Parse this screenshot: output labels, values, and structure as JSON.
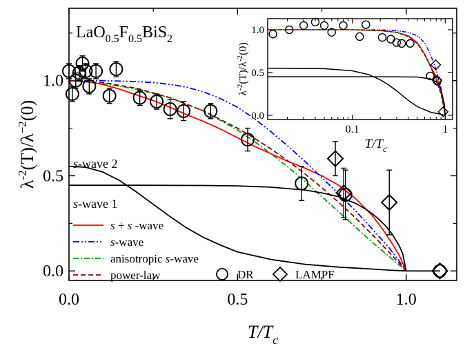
{
  "chart_data": {
    "type": "line",
    "main": {
      "title": {
        "base1": "LaO",
        "sub1": "0.5",
        "base2": "F",
        "sub2": "0.5",
        "base3": "BiS",
        "sub3": "2"
      },
      "xlabel": {
        "main": "T/T",
        "sub": "c"
      },
      "ylabel": {
        "p1": "λ",
        "sup1": "-2",
        "p2": "(T)/λ",
        "sup2": "−2",
        "p3": "(0)"
      },
      "xlim": [
        0,
        1.15
      ],
      "ylim": [
        -0.05,
        1.38
      ],
      "xticks": [
        {
          "value": 0.0,
          "label": "0.0"
        },
        {
          "value": 0.5,
          "label": "0.5"
        },
        {
          "value": 1.0,
          "label": "1.0"
        }
      ],
      "yticks": [
        {
          "value": 0.0,
          "label": "0.0"
        },
        {
          "value": 0.5,
          "label": "0.5"
        },
        {
          "value": 1.0,
          "label": "1.0"
        }
      ],
      "series": [
        {
          "key": "s_plus_s",
          "name": "s + s -wave",
          "color": "#ff0000",
          "dash": "",
          "x": [
            0.0,
            0.05,
            0.1,
            0.15,
            0.2,
            0.25,
            0.3,
            0.35,
            0.4,
            0.45,
            0.5,
            0.55,
            0.6,
            0.65,
            0.7,
            0.75,
            0.8,
            0.85,
            0.9,
            0.93,
            0.96,
            0.98,
            1.0
          ],
          "y": [
            1.0,
            0.995,
            0.98,
            0.955,
            0.925,
            0.895,
            0.86,
            0.82,
            0.785,
            0.745,
            0.7,
            0.655,
            0.615,
            0.575,
            0.54,
            0.5,
            0.45,
            0.38,
            0.29,
            0.22,
            0.14,
            0.08,
            0.0
          ]
        },
        {
          "key": "s_wave",
          "name": "s-wave",
          "color": "#0000ff",
          "dash": "9,3,2,3,2,3",
          "x": [
            0.0,
            0.1,
            0.2,
            0.25,
            0.3,
            0.35,
            0.4,
            0.45,
            0.5,
            0.55,
            0.6,
            0.65,
            0.7,
            0.75,
            0.8,
            0.85,
            0.9,
            0.95,
            0.98,
            1.0
          ],
          "y": [
            1.0,
            1.0,
            0.995,
            0.99,
            0.98,
            0.965,
            0.94,
            0.905,
            0.86,
            0.8,
            0.73,
            0.655,
            0.575,
            0.49,
            0.405,
            0.315,
            0.22,
            0.12,
            0.05,
            0.0
          ]
        },
        {
          "key": "anisotropic",
          "name": "anisotropic s-wave",
          "color": "#00a000",
          "dash": "8,3,2,3",
          "x": [
            0.0,
            0.1,
            0.2,
            0.3,
            0.4,
            0.5,
            0.55,
            0.6,
            0.65,
            0.7,
            0.75,
            0.8,
            0.85,
            0.9,
            0.95,
            0.98,
            1.0
          ],
          "y": [
            1.0,
            0.985,
            0.955,
            0.91,
            0.84,
            0.74,
            0.68,
            0.615,
            0.545,
            0.47,
            0.39,
            0.31,
            0.23,
            0.15,
            0.075,
            0.03,
            0.0
          ]
        },
        {
          "key": "power_law",
          "name": "power-law",
          "color": "#8b0000",
          "dash": "7,4",
          "x": [
            0.0,
            0.1,
            0.2,
            0.3,
            0.4,
            0.5,
            0.55,
            0.6,
            0.65,
            0.7,
            0.75,
            0.8,
            0.85,
            0.9,
            0.95,
            0.98,
            1.0
          ],
          "y": [
            1.0,
            0.99,
            0.96,
            0.91,
            0.84,
            0.75,
            0.697,
            0.64,
            0.577,
            0.51,
            0.437,
            0.36,
            0.278,
            0.19,
            0.0975,
            0.04,
            0.0
          ]
        },
        {
          "key": "s_wave_1",
          "name": "s-wave 1",
          "color": "#000000",
          "dash": "",
          "x": [
            0.0,
            0.2,
            0.4,
            0.5,
            0.6,
            0.7,
            0.75,
            0.8,
            0.85,
            0.88,
            0.9,
            0.92,
            0.94,
            0.96,
            0.98,
            0.99,
            1.0
          ],
          "y": [
            0.45,
            0.45,
            0.449,
            0.447,
            0.44,
            0.425,
            0.41,
            0.39,
            0.355,
            0.325,
            0.3,
            0.27,
            0.235,
            0.19,
            0.13,
            0.09,
            0.0
          ]
        },
        {
          "key": "s_wave_2",
          "name": "s-wave 2",
          "color": "#000000",
          "dash": "",
          "x": [
            0.0,
            0.05,
            0.1,
            0.15,
            0.2,
            0.25,
            0.3,
            0.35,
            0.4,
            0.45,
            0.5,
            0.6,
            0.7,
            0.8,
            0.9,
            0.95,
            1.0
          ],
          "y": [
            0.55,
            0.545,
            0.52,
            0.475,
            0.415,
            0.35,
            0.285,
            0.225,
            0.175,
            0.135,
            0.1,
            0.06,
            0.035,
            0.02,
            0.01,
            0.004,
            0.0
          ]
        }
      ],
      "dr_points": [
        {
          "x": 0.0,
          "y": 1.05,
          "err": 0.04
        },
        {
          "x": 0.01,
          "y": 0.93,
          "err": 0.04
        },
        {
          "x": 0.02,
          "y": 1.0,
          "err": 0.04
        },
        {
          "x": 0.03,
          "y": 1.04,
          "err": 0.04
        },
        {
          "x": 0.04,
          "y": 1.09,
          "err": 0.04
        },
        {
          "x": 0.05,
          "y": 1.05,
          "err": 0.04
        },
        {
          "x": 0.06,
          "y": 0.97,
          "err": 0.04
        },
        {
          "x": 0.08,
          "y": 1.05,
          "err": 0.04
        },
        {
          "x": 0.12,
          "y": 0.92,
          "err": 0.04
        },
        {
          "x": 0.14,
          "y": 1.06,
          "err": 0.04
        },
        {
          "x": 0.21,
          "y": 0.91,
          "err": 0.04
        },
        {
          "x": 0.26,
          "y": 0.89,
          "err": 0.04
        },
        {
          "x": 0.3,
          "y": 0.85,
          "err": 0.05
        },
        {
          "x": 0.34,
          "y": 0.84,
          "err": 0.05
        },
        {
          "x": 0.42,
          "y": 0.84,
          "err": 0.04
        },
        {
          "x": 0.53,
          "y": 0.69,
          "err": 0.06
        },
        {
          "x": 0.69,
          "y": 0.46,
          "err": 0.09
        },
        {
          "x": 0.82,
          "y": 0.4,
          "err": 0.13
        },
        {
          "x": 1.1,
          "y": 0.0,
          "err": 0.0
        }
      ],
      "lampf_points": [
        {
          "x": 0.79,
          "y": 0.59,
          "err": 0.09
        },
        {
          "x": 0.815,
          "y": 0.41,
          "err": 0.13
        },
        {
          "x": 0.95,
          "y": 0.36,
          "err": 0.17
        },
        {
          "x": 1.1,
          "y": 0.0,
          "err": 0.0
        }
      ],
      "labels": {
        "s_wave_2": {
          "italic": "s",
          "rest": "-wave 2"
        },
        "s_wave_1": {
          "italic": "s",
          "rest": "-wave 1"
        }
      },
      "legend": {
        "placement": "bottom-left",
        "lines": [
          {
            "series": "s_plus_s",
            "parts": [
              {
                "t": "s",
                "i": true
              },
              {
                "t": " + ",
                "i": false
              },
              {
                "t": "s",
                "i": true
              },
              {
                "t": " -wave",
                "i": false
              }
            ]
          },
          {
            "series": "s_wave",
            "parts": [
              {
                "t": "s",
                "i": true
              },
              {
                "t": "-wave",
                "i": false
              }
            ]
          },
          {
            "series": "anisotropic",
            "parts": [
              {
                "t": "anisotropic ",
                "i": false
              },
              {
                "t": "s",
                "i": true
              },
              {
                "t": "-wave",
                "i": false
              }
            ]
          },
          {
            "series": "power_law",
            "parts": [
              {
                "t": "power-law",
                "i": false
              }
            ]
          }
        ],
        "markers": [
          {
            "shape": "circle",
            "label": "DR"
          },
          {
            "shape": "diamond",
            "label": "LAMPF"
          }
        ]
      }
    },
    "inset": {
      "xscale": "log",
      "xlim": [
        0.0123,
        1.2
      ],
      "ylim": [
        -0.05,
        1.13
      ],
      "xlabel": {
        "main": "T/T",
        "sub": "c"
      },
      "ylabel": {
        "p1": "λ",
        "sup1": "-2",
        "p2": "(T)/λ",
        "sup2": "-2",
        "p3": "(0)"
      },
      "xticks": [
        {
          "value": 0.1,
          "label": "0.1"
        },
        {
          "value": 1.0,
          "label": "1"
        }
      ],
      "yticks": [
        {
          "value": 0.0,
          "label": "0.0"
        },
        {
          "value": 0.5,
          "label": "0.5"
        },
        {
          "value": 1.0,
          "label": "1.0"
        }
      ],
      "series": [
        {
          "key": "s_plus_s",
          "color": "#ff0000",
          "dash": "",
          "x": [
            0.0123,
            0.05,
            0.1,
            0.2,
            0.3,
            0.4,
            0.5,
            0.6,
            0.7,
            0.8,
            0.85,
            0.9,
            0.95,
            1.0
          ],
          "y": [
            1.0,
            1.0,
            1.0,
            0.99,
            0.97,
            0.93,
            0.85,
            0.72,
            0.57,
            0.45,
            0.38,
            0.29,
            0.14,
            0.0
          ]
        },
        {
          "key": "s_wave",
          "color": "#0000ff",
          "dash": "6,2,1.5,2,1.5,2",
          "x": [
            0.0123,
            0.1,
            0.2,
            0.3,
            0.4,
            0.5,
            0.6,
            0.7,
            0.8,
            0.9,
            0.95,
            1.0
          ],
          "y": [
            1.0,
            1.0,
            1.0,
            0.99,
            0.97,
            0.93,
            0.85,
            0.7,
            0.53,
            0.32,
            0.18,
            0.0
          ]
        },
        {
          "key": "anisotropic",
          "color": "#00a000",
          "dash": "5,2,1.5,2",
          "x": [
            0.0123,
            0.1,
            0.2,
            0.3,
            0.4,
            0.5,
            0.6,
            0.7,
            0.8,
            0.9,
            0.95,
            1.0
          ],
          "y": [
            1.0,
            1.0,
            0.99,
            0.97,
            0.92,
            0.84,
            0.71,
            0.56,
            0.41,
            0.25,
            0.13,
            0.0
          ]
        },
        {
          "key": "power_law",
          "color": "#8b0000",
          "dash": "5,3",
          "x": [
            0.0123,
            0.1,
            0.2,
            0.3,
            0.4,
            0.5,
            0.6,
            0.7,
            0.8,
            0.9,
            0.95,
            1.0
          ],
          "y": [
            1.0,
            1.0,
            0.99,
            0.97,
            0.92,
            0.84,
            0.71,
            0.56,
            0.41,
            0.25,
            0.13,
            0.0
          ]
        },
        {
          "key": "s_wave_1",
          "color": "#000000",
          "dash": "",
          "x": [
            0.0123,
            0.1,
            0.3,
            0.5,
            0.7,
            0.8,
            0.85,
            0.9,
            0.95,
            0.98,
            1.0
          ],
          "y": [
            0.45,
            0.45,
            0.449,
            0.447,
            0.425,
            0.39,
            0.355,
            0.3,
            0.19,
            0.13,
            0.0
          ]
        },
        {
          "key": "s_wave_2",
          "color": "#000000",
          "dash": "",
          "x": [
            0.0123,
            0.05,
            0.1,
            0.15,
            0.2,
            0.25,
            0.3,
            0.4,
            0.5,
            0.7,
            1.0
          ],
          "y": [
            0.55,
            0.545,
            0.52,
            0.475,
            0.415,
            0.35,
            0.285,
            0.175,
            0.1,
            0.035,
            0.0
          ]
        }
      ],
      "dr_points": [
        {
          "x": 0.014,
          "y": 0.95
        },
        {
          "x": 0.021,
          "y": 1.0
        },
        {
          "x": 0.03,
          "y": 1.05
        },
        {
          "x": 0.04,
          "y": 1.09
        },
        {
          "x": 0.05,
          "y": 1.05
        },
        {
          "x": 0.06,
          "y": 0.97
        },
        {
          "x": 0.08,
          "y": 1.05
        },
        {
          "x": 0.12,
          "y": 0.92
        },
        {
          "x": 0.14,
          "y": 1.06
        },
        {
          "x": 0.21,
          "y": 0.91
        },
        {
          "x": 0.26,
          "y": 0.89
        },
        {
          "x": 0.3,
          "y": 0.85
        },
        {
          "x": 0.34,
          "y": 0.84
        },
        {
          "x": 0.42,
          "y": 0.84
        },
        {
          "x": 0.69,
          "y": 0.46
        },
        {
          "x": 0.82,
          "y": 0.4
        }
      ],
      "lampf_points": [
        {
          "x": 0.79,
          "y": 0.59
        },
        {
          "x": 0.815,
          "y": 0.41
        },
        {
          "x": 0.95,
          "y": 0.04
        }
      ]
    }
  }
}
